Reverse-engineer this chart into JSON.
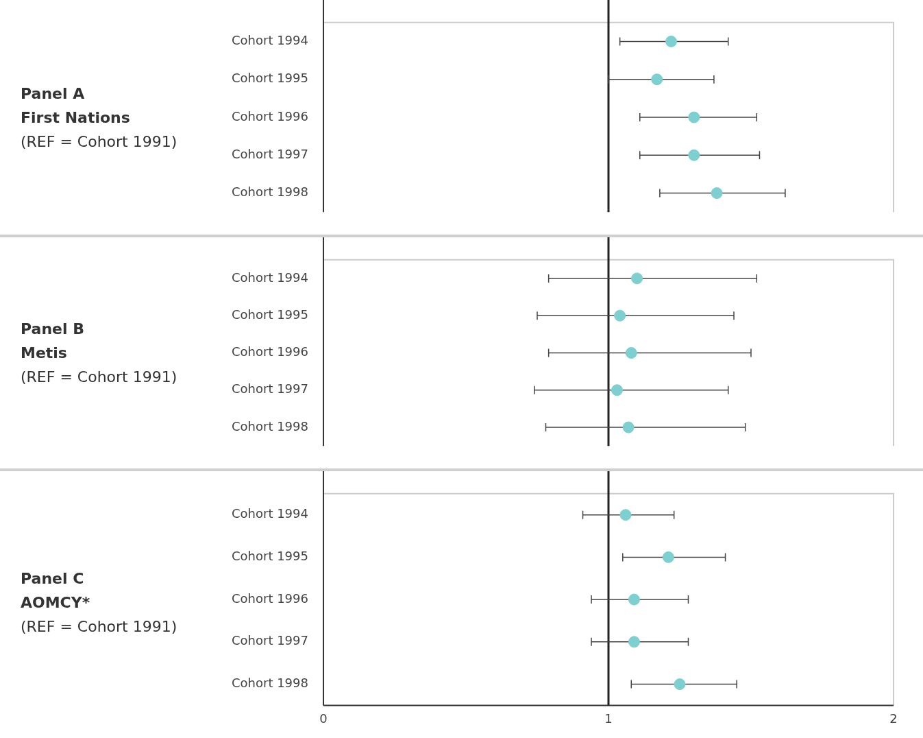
{
  "chart_data": [
    {
      "type": "scatter",
      "annotations": [
        "Panel A",
        "First Nations",
        "(REF = Cohort 1991)"
      ],
      "orientation": "horizontal",
      "categories": [
        "Cohort 1994",
        "Cohort 1995",
        "Cohort 1996",
        "Cohort 1997",
        "Cohort 1998"
      ],
      "values": [
        1.22,
        1.17,
        1.3,
        1.3,
        1.38
      ],
      "errors": [
        [
          1.04,
          1.42
        ],
        [
          1.0,
          1.37
        ],
        [
          1.11,
          1.52
        ],
        [
          1.11,
          1.53
        ],
        [
          1.18,
          1.62
        ]
      ],
      "color": "#7ecfcf",
      "marker": "circle",
      "xlim": [
        0,
        2
      ],
      "xticks": [
        0,
        1,
        2
      ],
      "tick_labels": "y",
      "grid": false,
      "legend": false,
      "ref_lines": [
        {
          "axis": "x",
          "value": 1,
          "color": "#222222"
        }
      ]
    },
    {
      "type": "scatter",
      "annotations": [
        "Panel B",
        "Metis",
        "(REF = Cohort 1991)"
      ],
      "orientation": "horizontal",
      "categories": [
        "Cohort 1994",
        "Cohort 1995",
        "Cohort 1996",
        "Cohort 1997",
        "Cohort 1998"
      ],
      "values": [
        1.1,
        1.04,
        1.08,
        1.03,
        1.07
      ],
      "errors": [
        [
          0.79,
          1.52
        ],
        [
          0.75,
          1.44
        ],
        [
          0.79,
          1.5
        ],
        [
          0.74,
          1.42
        ],
        [
          0.78,
          1.48
        ]
      ],
      "color": "#7ecfcf",
      "marker": "circle",
      "xlim": [
        0,
        2
      ],
      "xticks": [
        0,
        1,
        2
      ],
      "tick_labels": "y",
      "grid": false,
      "legend": false,
      "ref_lines": [
        {
          "axis": "x",
          "value": 1,
          "color": "#222222"
        }
      ]
    },
    {
      "type": "scatter",
      "annotations": [
        "Panel C",
        "AOMCY*",
        "(REF = Cohort 1991)"
      ],
      "orientation": "horizontal",
      "categories": [
        "Cohort 1994",
        "Cohort 1995",
        "Cohort 1996",
        "Cohort 1997",
        "Cohort 1998"
      ],
      "values": [
        1.06,
        1.21,
        1.09,
        1.09,
        1.25
      ],
      "errors": [
        [
          0.91,
          1.23
        ],
        [
          1.05,
          1.41
        ],
        [
          0.94,
          1.28
        ],
        [
          0.94,
          1.28
        ],
        [
          1.08,
          1.45
        ]
      ],
      "color": "#7ecfcf",
      "marker": "circle",
      "xlim": [
        0,
        2
      ],
      "xticks": [
        0,
        1,
        2
      ],
      "grid": false,
      "legend": false,
      "ref_lines": [
        {
          "axis": "x",
          "value": 1,
          "color": "#222222"
        }
      ]
    }
  ]
}
